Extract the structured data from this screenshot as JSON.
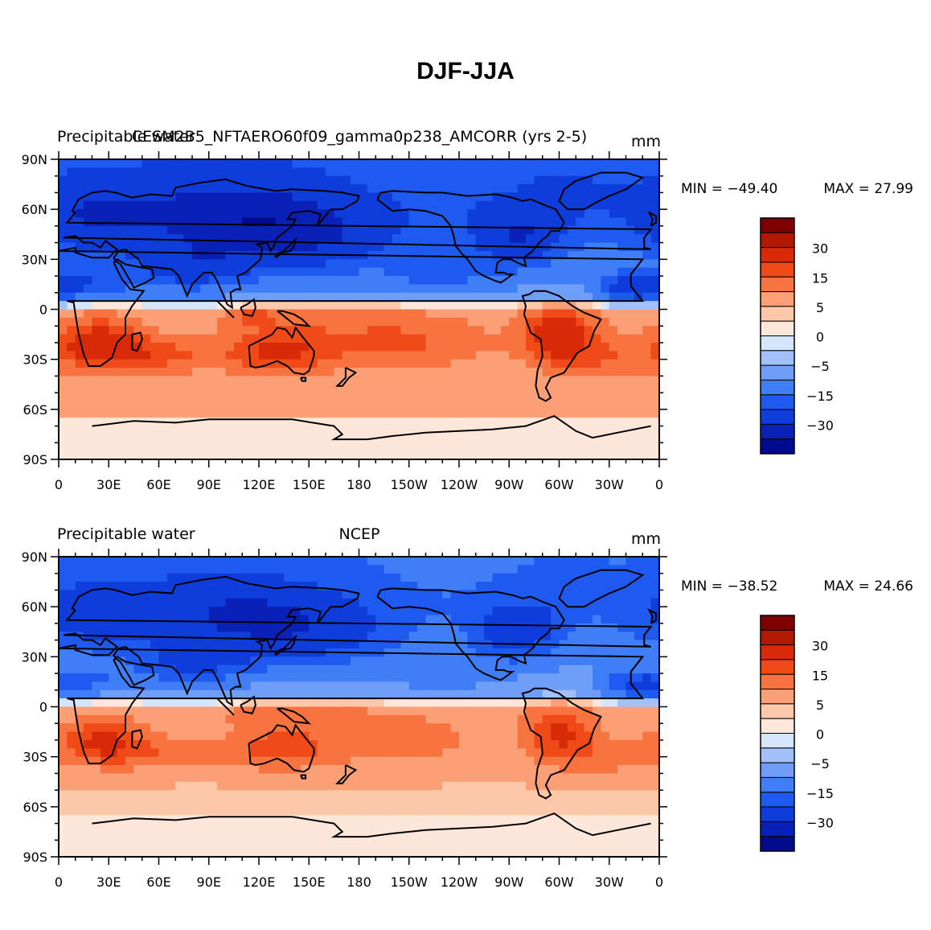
{
  "title": "DJF-JJA",
  "palette": [
    "#000a8c",
    "#0a21b8",
    "#0e3ddb",
    "#1f5af0",
    "#3f7ef7",
    "#6f9ef9",
    "#a2c0fb",
    "#d5e5fc",
    "#fce7da",
    "#fcc8aa",
    "#fb9f76",
    "#f7733f",
    "#ef4a17",
    "#d82a08",
    "#b01800",
    "#7f0000"
  ],
  "colorbar": {
    "labels": [
      "30",
      "15",
      "5",
      "0",
      "−5",
      "−15",
      "−30"
    ]
  },
  "chart_data": [
    {
      "type": "heatmap",
      "panel": "top",
      "left_title": "Precipitable water",
      "center_title": "CESM2B5_NFTAERO60f09_gamma0p238_AMCORR (yrs 2-5)",
      "units": "mm",
      "min_text": "MIN = −49.40",
      "max_text": "MAX =  27.99",
      "min": -49.4,
      "max": 27.99,
      "x_ticks": [
        "0",
        "30E",
        "60E",
        "90E",
        "120E",
        "150E",
        "180",
        "150W",
        "120W",
        "90W",
        "60W",
        "30W",
        "0"
      ],
      "y_ticks": [
        "90N",
        "60N",
        "30N",
        "0",
        "30S",
        "60S",
        "90S"
      ],
      "xlim": [
        0,
        360
      ],
      "ylim": [
        -90,
        90
      ],
      "contour_levels": [
        -40,
        -30,
        -20,
        -15,
        -10,
        -5,
        -2,
        0,
        2,
        5,
        10,
        15,
        20,
        30,
        40
      ]
    },
    {
      "type": "heatmap",
      "panel": "bottom",
      "left_title": "Precipitable water",
      "center_title": "NCEP",
      "units": "mm",
      "min_text": "MIN = −38.52",
      "max_text": "MAX =  24.66",
      "min": -38.52,
      "max": 24.66,
      "x_ticks": [
        "0",
        "30E",
        "60E",
        "90E",
        "120E",
        "150E",
        "180",
        "150W",
        "120W",
        "90W",
        "60W",
        "30W",
        "0"
      ],
      "y_ticks": [
        "90N",
        "60N",
        "30N",
        "0",
        "30S",
        "60S",
        "90S"
      ],
      "xlim": [
        0,
        360
      ],
      "ylim": [
        -90,
        90
      ],
      "contour_levels": [
        -40,
        -30,
        -20,
        -15,
        -10,
        -5,
        -2,
        0,
        2,
        5,
        10,
        15,
        20,
        30,
        40
      ]
    }
  ]
}
